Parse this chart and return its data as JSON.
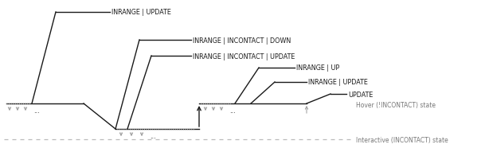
{
  "bg_color": "#ffffff",
  "line_color": "#1a1a1a",
  "gray_color": "#999999",
  "dashed_color": "#bbbbbb",
  "arrow_color": "#999999",
  "labels": {
    "inrange_update_1": "INRANGE | UPDATE",
    "inrange_incontact_down": "INRANGE | INCONTACT | DOWN",
    "inrange_incontact_update": "INRANGE | INCONTACT | UPDATE",
    "inrange_up": "INRANGE | UP",
    "inrange_update_2": "INRANGE | UPDATE",
    "update": "UPDATE",
    "hover_state": "Hover (!INCONTACT) state",
    "interactive_state": "Interactive (INCONTACT) state"
  }
}
